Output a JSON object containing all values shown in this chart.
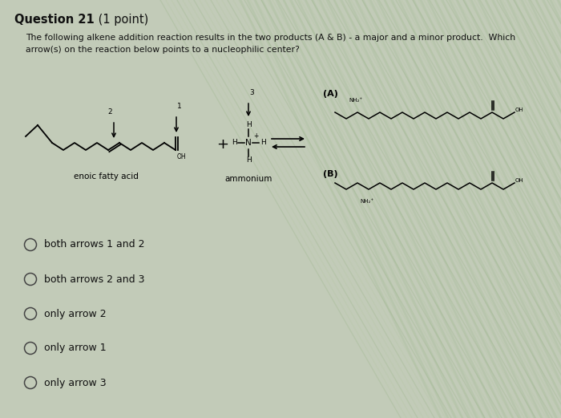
{
  "title_bold": "Question 21",
  "title_normal": " (1 point)",
  "question_text_line1": "The following alkene addition reaction results in the two products (A & B) - a major and a minor product.  Which",
  "question_text_line2": "arrow(s) on the reaction below points to a nucleophilic center?",
  "label_enoic": "enoic fatty acid",
  "label_ammonium": "ammonium",
  "label_A": "(A)",
  "label_B": "(B)",
  "choices": [
    "both arrows 1 and 2",
    "both arrows 2 and 3",
    "only arrow 2",
    "only arrow 1",
    "only arrow 3"
  ],
  "bg_color": "#c2cbb8",
  "text_color": "#111111",
  "fig_width": 7.0,
  "fig_height": 5.21
}
